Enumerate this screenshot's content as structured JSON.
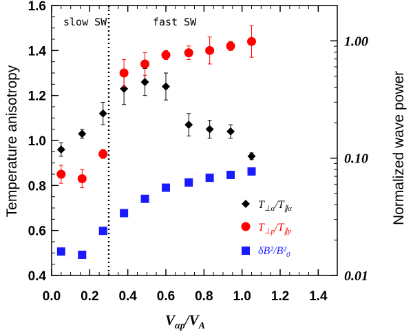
{
  "chart_data": {
    "type": "scatter",
    "xlabel_main": "V",
    "xlabel_main_sub": "αp",
    "xlabel_den": "V",
    "xlabel_den_sub": "A",
    "ylabel_left": "Temperature anisotropy",
    "ylabel_right": "Normalized wave power",
    "xlim": [
      0.0,
      1.5
    ],
    "ylim_left": [
      0.4,
      1.6
    ],
    "ylim_right_log": [
      0.01,
      2.0
    ],
    "x_ticks": [
      "0.0",
      "0.2",
      "0.4",
      "0.6",
      "0.8",
      "1.0",
      "1.2",
      "1.4"
    ],
    "x_tick_values": [
      0.0,
      0.2,
      0.4,
      0.6,
      0.8,
      1.0,
      1.2,
      1.4
    ],
    "y_left_ticks": [
      "0.4",
      "0.6",
      "0.8",
      "1.0",
      "1.2",
      "1.4",
      "1.6"
    ],
    "y_left_tick_values": [
      0.4,
      0.6,
      0.8,
      1.0,
      1.2,
      1.4,
      1.6
    ],
    "y_right_ticks": [
      "0.01",
      "0.10",
      "1.00"
    ],
    "y_right_tick_values": [
      0.01,
      0.1,
      1.0
    ],
    "divider_x": 0.3,
    "regions": {
      "slow": "slow SW",
      "fast": "fast SW"
    },
    "series": [
      {
        "name": "alpha",
        "legend_num": "T",
        "legend_num_sub": "⊥α",
        "legend_den": "T",
        "legend_den_sub": "∥α",
        "color": "#000000",
        "marker": "diamond",
        "axis": "left",
        "x": [
          0.05,
          0.16,
          0.27,
          0.38,
          0.49,
          0.6,
          0.72,
          0.83,
          0.94,
          1.05
        ],
        "y": [
          0.96,
          1.03,
          1.12,
          1.23,
          1.26,
          1.24,
          1.07,
          1.05,
          1.04,
          0.93
        ],
        "err": [
          0.03,
          0.02,
          0.05,
          0.07,
          0.06,
          0.06,
          0.05,
          0.04,
          0.03,
          0.015
        ]
      },
      {
        "name": "proton",
        "legend_num": "T",
        "legend_num_sub": "⊥p",
        "legend_den": "T",
        "legend_den_sub": "∥p",
        "color": "#ff0000",
        "marker": "circle",
        "axis": "left",
        "x": [
          0.05,
          0.16,
          0.27,
          0.38,
          0.49,
          0.6,
          0.72,
          0.83,
          0.94,
          1.05
        ],
        "y": [
          0.85,
          0.83,
          0.94,
          1.3,
          1.34,
          1.38,
          1.39,
          1.4,
          1.42,
          1.44
        ],
        "err": [
          0.04,
          0.04,
          0.02,
          0.06,
          0.05,
          0.02,
          0.03,
          0.06,
          0.02,
          0.07
        ]
      },
      {
        "name": "wave power",
        "legend_num": "δB²",
        "legend_den": "B²",
        "legend_den_sub": "0",
        "color": "#1a1aff",
        "marker": "square",
        "axis": "right",
        "x": [
          0.05,
          0.16,
          0.27,
          0.38,
          0.49,
          0.6,
          0.72,
          0.83,
          0.94,
          1.05
        ],
        "y": [
          0.016,
          0.015,
          0.024,
          0.034,
          0.045,
          0.056,
          0.062,
          0.068,
          0.072,
          0.077
        ]
      }
    ]
  }
}
